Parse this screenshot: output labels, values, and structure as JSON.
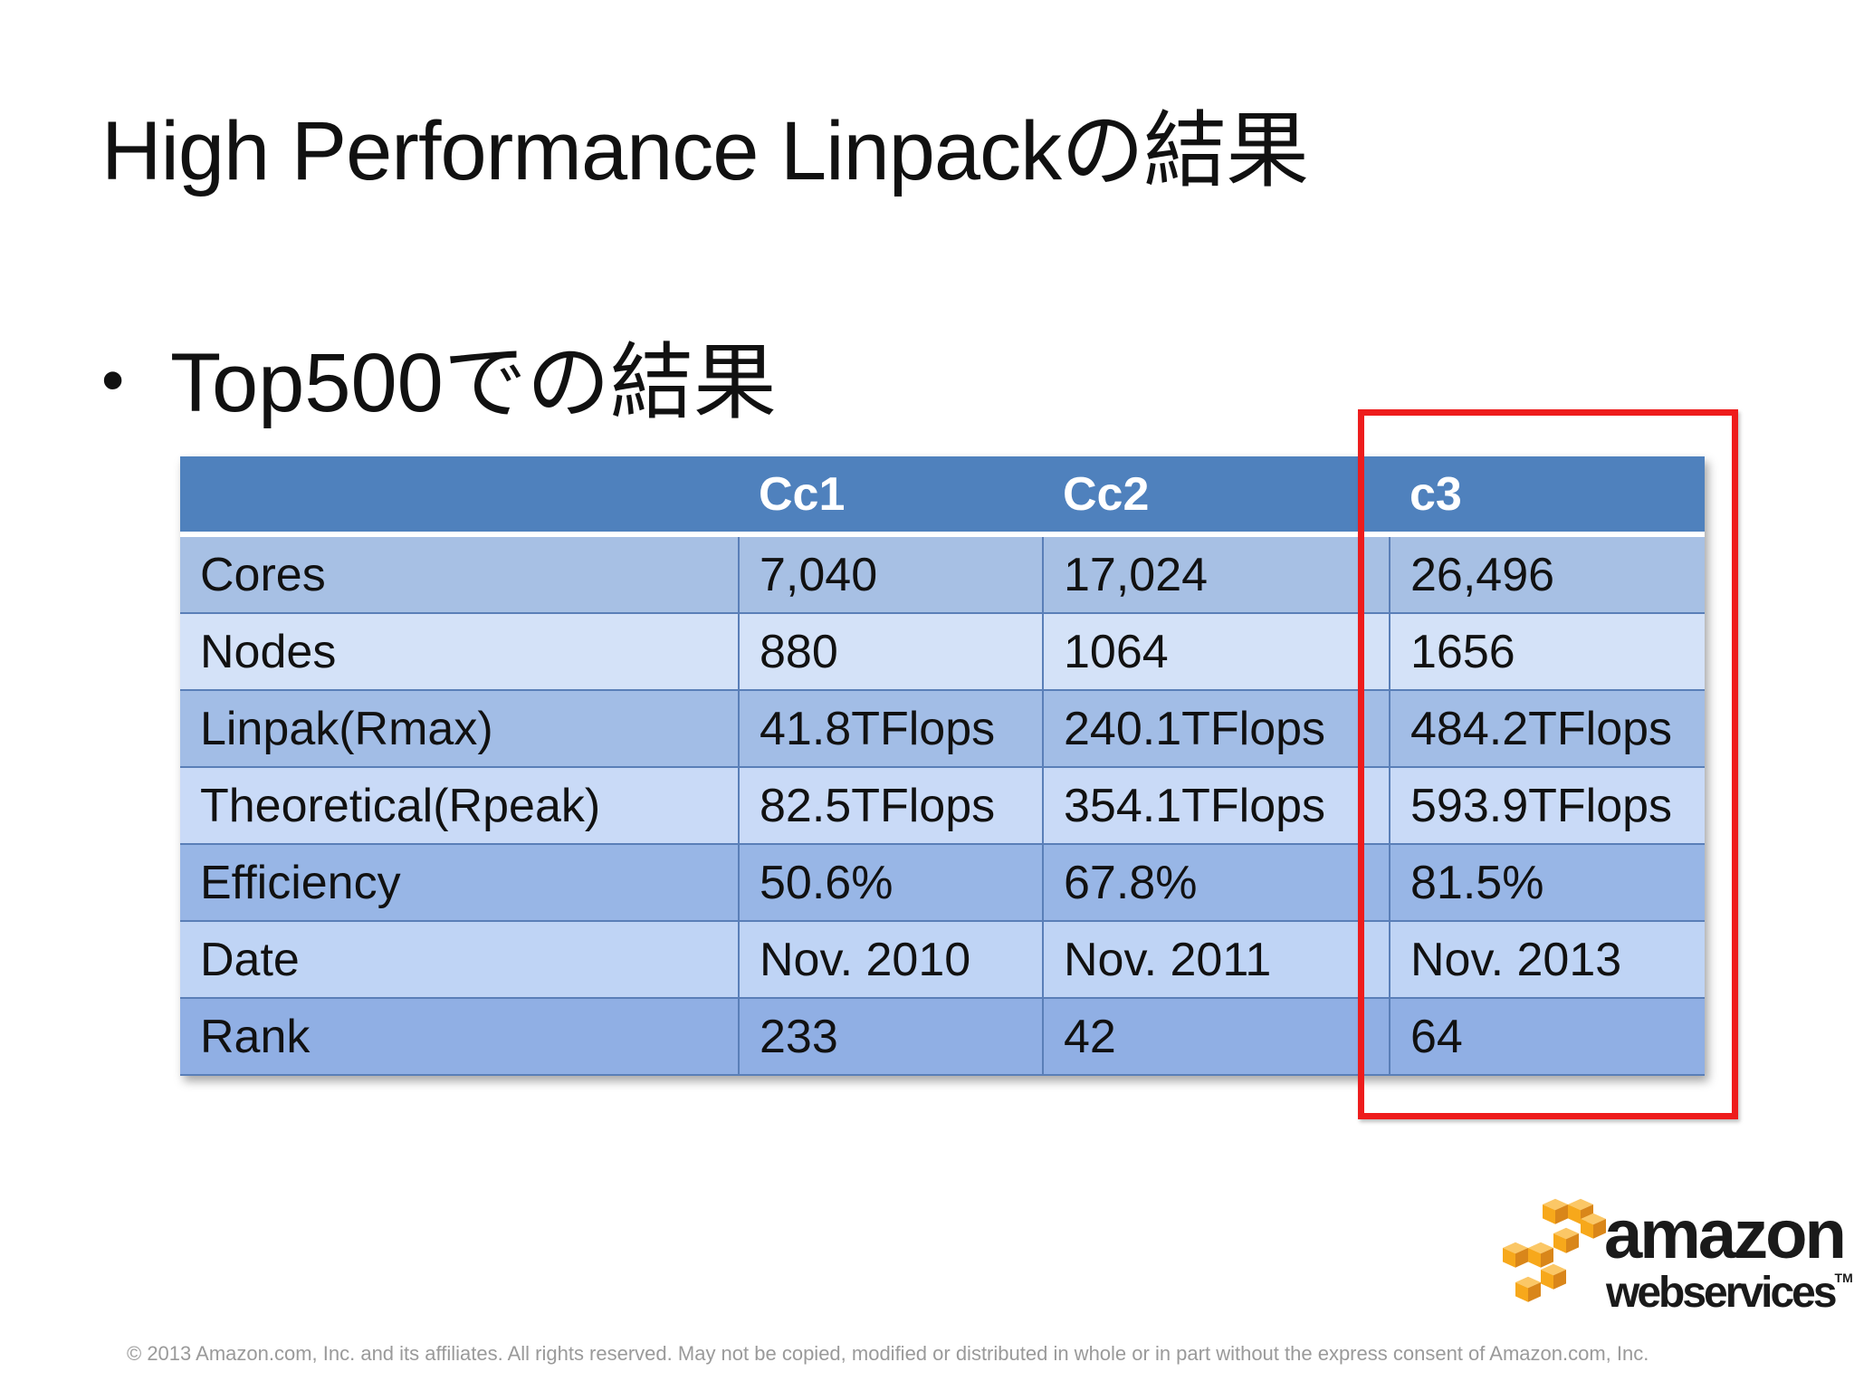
{
  "title": "High Performance Linpackの結果",
  "bullet": {
    "symbol": "•",
    "text": "Top500での結果"
  },
  "table": {
    "headers": [
      "",
      "Cc1",
      "Cc2",
      "c3"
    ],
    "rows": [
      [
        "Cores",
        "7,040",
        "17,024",
        "26,496"
      ],
      [
        "Nodes",
        "880",
        "1064",
        "1656"
      ],
      [
        "Linpak(Rmax)",
        "41.8TFlops",
        "240.1TFlops",
        "484.2TFlops"
      ],
      [
        "Theoretical(Rpeak)",
        "82.5TFlops",
        "354.1TFlops",
        "593.9TFlops"
      ],
      [
        "Efficiency",
        "50.6%",
        "67.8%",
        "81.5%"
      ],
      [
        "Date",
        "Nov. 2010",
        "Nov. 2011",
        "Nov. 2013"
      ],
      [
        "Rank",
        "233",
        "42",
        "64"
      ]
    ]
  },
  "highlight": {
    "color": "#ee1c1c",
    "target_column": "c3"
  },
  "logo": {
    "icon": "aws-cubes-icon",
    "line1": "amazon",
    "line2": "webservices",
    "tm": "TM",
    "cube_color": "#f7a81b"
  },
  "footer": {
    "copyright": "© 2013 Amazon.com, Inc. and its affiliates.  All rights reserved.  May not be copied, modified or distributed in whole or in part without the express consent of Amazon.com, Inc."
  }
}
